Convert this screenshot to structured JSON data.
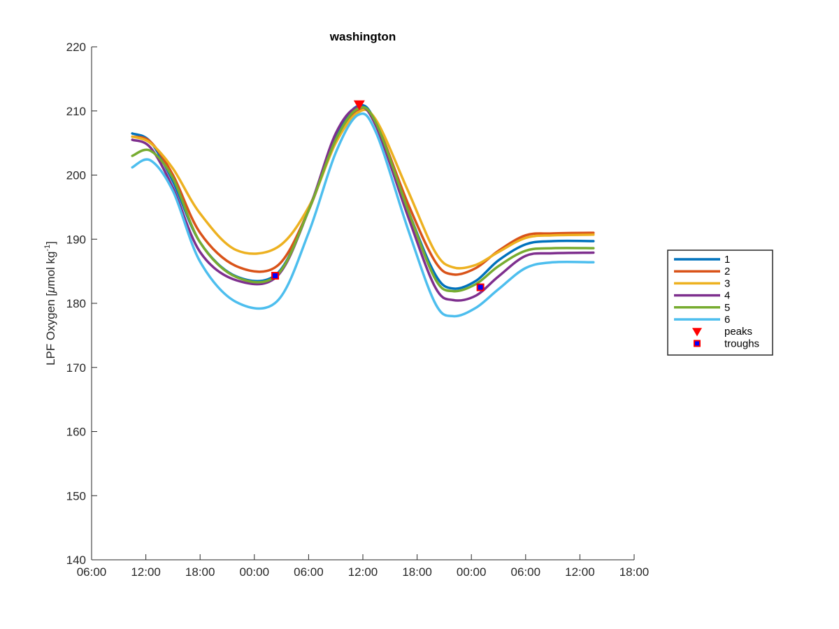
{
  "chart_data": {
    "type": "line",
    "title": "washington",
    "ylabel_main": "LPF Oxygen [",
    "ylabel_mu": "μ",
    "ylabel_mid": "mol kg",
    "ylabel_sup": "-1",
    "ylabel_end": "]",
    "xlabel": "",
    "x_unit": "hours",
    "x_ticks": [
      0,
      6,
      12,
      18,
      24,
      30,
      36,
      42,
      48,
      54,
      60
    ],
    "x_tick_labels": [
      "06:00",
      "12:00",
      "18:00",
      "00:00",
      "06:00",
      "12:00",
      "18:00",
      "00:00",
      "06:00",
      "12:00",
      "18:00"
    ],
    "xlim": [
      0,
      60
    ],
    "y_ticks": [
      140,
      150,
      160,
      170,
      180,
      190,
      200,
      210,
      220
    ],
    "ylim": [
      140,
      220
    ],
    "grid": false,
    "legend_placement": "right-outside",
    "series": [
      {
        "name": "1",
        "color": "#0072BD",
        "x": [
          4.5,
          6.5,
          9,
          12,
          16,
          20.5,
          24,
          27,
          29.5,
          31.5,
          35,
          38,
          40,
          42.5,
          45,
          48,
          51,
          55.5
        ],
        "y": [
          206.5,
          205.2,
          199,
          189.5,
          184.2,
          184.6,
          194.5,
          206,
          210.8,
          208,
          194.5,
          184.5,
          182.3,
          183.5,
          186.7,
          189.2,
          189.7,
          189.7
        ]
      },
      {
        "name": "2",
        "color": "#D95319",
        "x": [
          4.5,
          6.5,
          9,
          12,
          16,
          20.5,
          24,
          27,
          29.5,
          31.5,
          35,
          38,
          40,
          42.5,
          45,
          48,
          51,
          55.5
        ],
        "y": [
          206,
          205.2,
          200,
          191,
          185.8,
          185.8,
          194.5,
          205.5,
          210.2,
          208,
          195.5,
          186.5,
          184.5,
          185.5,
          188.2,
          190.6,
          190.9,
          191
        ]
      },
      {
        "name": "3",
        "color": "#EDB120",
        "x": [
          4.5,
          6.5,
          9,
          12,
          16,
          20.5,
          24,
          27,
          29.5,
          31.5,
          35,
          38,
          40,
          42.5,
          45,
          48,
          51,
          55.5
        ],
        "y": [
          206,
          205,
          201,
          194,
          188.3,
          188.7,
          195,
          205,
          209.8,
          208.5,
          197.5,
          188,
          185.6,
          186,
          188,
          190.2,
          190.6,
          190.7
        ]
      },
      {
        "name": "4",
        "color": "#7E2F8E",
        "x": [
          4.5,
          6.5,
          9,
          12,
          16,
          20.5,
          24,
          27,
          29.5,
          31.5,
          35,
          38,
          40,
          42.5,
          45,
          48,
          51,
          55.5
        ],
        "y": [
          205.5,
          204.3,
          198,
          188,
          183.6,
          184.2,
          194.5,
          206.5,
          210.6,
          207.5,
          193.5,
          182.5,
          180.5,
          181.2,
          184.2,
          187.4,
          187.8,
          187.9
        ]
      },
      {
        "name": "5",
        "color": "#77AC30",
        "x": [
          4.5,
          6.5,
          9,
          12,
          16,
          20.5,
          24,
          27,
          29.5,
          31.5,
          35,
          38,
          40,
          42.5,
          45,
          48,
          51,
          55.5
        ],
        "y": [
          203,
          203.8,
          199.5,
          189.5,
          184.1,
          184.4,
          194.5,
          205.5,
          210.4,
          208,
          194.5,
          183.8,
          181.9,
          183,
          185.8,
          188.2,
          188.6,
          188.6
        ]
      },
      {
        "name": "6",
        "color": "#4DBEEE",
        "x": [
          4.5,
          6.5,
          9,
          12,
          16,
          20.5,
          24,
          27,
          29.5,
          31.5,
          35,
          38,
          40,
          42.5,
          45,
          48,
          51,
          55.5
        ],
        "y": [
          201.2,
          202.3,
          197.5,
          186.5,
          180.2,
          180.3,
          191,
          203.5,
          209.4,
          206.5,
          191.5,
          180,
          178,
          179.3,
          182.2,
          185.5,
          186.4,
          186.4
        ]
      }
    ],
    "peaks": {
      "name": "peaks",
      "color": "#FF0000",
      "points": [
        {
          "x": 29.6,
          "y": 211
        }
      ]
    },
    "troughs": {
      "name": "troughs",
      "color": "#0000FF",
      "edge_color": "#FF0000",
      "points": [
        {
          "x": 20.3,
          "y": 184.3
        },
        {
          "x": 43.0,
          "y": 182.5
        }
      ]
    }
  }
}
